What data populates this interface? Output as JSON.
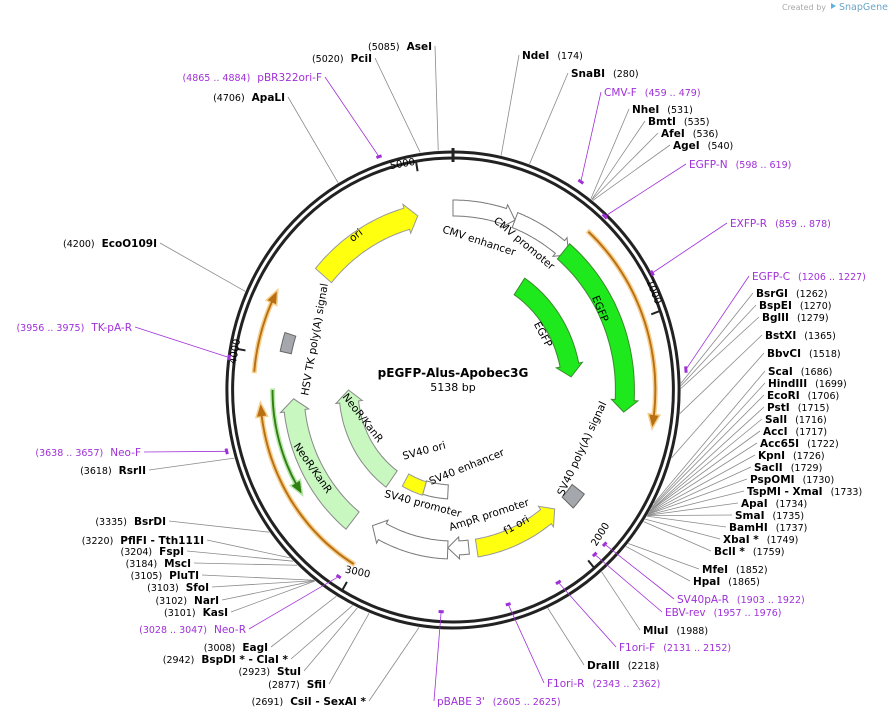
{
  "header": {
    "created_by": "Created by",
    "app": "SnapGene"
  },
  "plasmid": {
    "name": "pEGFP-Alus-Apobec3G",
    "size": "5138 bp"
  },
  "ruler_ticks": [
    1000,
    2000,
    3000,
    4000,
    5000
  ],
  "sites": [
    {
      "name": "AseI",
      "position": "(5085)"
    },
    {
      "name": "PciI",
      "position": "(5020)"
    },
    {
      "name": "ApaLI",
      "position": "(4706)"
    },
    {
      "name": "EcoO109I",
      "position": "(4200)"
    },
    {
      "name": "RsrII",
      "position": "(3618)"
    },
    {
      "name": "BsrDI",
      "position": "(3335)"
    },
    {
      "name": "PflFI - Tth111I",
      "position": "(3220)"
    },
    {
      "name": "FspI",
      "position": "(3204)"
    },
    {
      "name": "MscI",
      "position": "(3184)"
    },
    {
      "name": "PluTI",
      "position": "(3105)"
    },
    {
      "name": "SfoI",
      "position": "(3103)"
    },
    {
      "name": "NarI",
      "position": "(3102)"
    },
    {
      "name": "KasI",
      "position": "(3101)"
    },
    {
      "name": "EagI",
      "position": "(3008)"
    },
    {
      "name": "BspDI * - ClaI *",
      "position": "(2942)"
    },
    {
      "name": "StuI",
      "position": "(2923)"
    },
    {
      "name": "SfiI",
      "position": "(2877)"
    },
    {
      "name": "CsiI - SexAI *",
      "position": "(2691)"
    },
    {
      "name": "DraIII",
      "position": "(2218)"
    },
    {
      "name": "MluI",
      "position": "(1988)"
    },
    {
      "name": "HpaI",
      "position": "(1865)"
    },
    {
      "name": "MfeI",
      "position": "(1852)"
    },
    {
      "name": "BclI *",
      "position": "(1759)"
    },
    {
      "name": "XbaI *",
      "position": "(1749)"
    },
    {
      "name": "BamHI",
      "position": "(1737)"
    },
    {
      "name": "SmaI",
      "position": "(1735)"
    },
    {
      "name": "ApaI",
      "position": "(1734)"
    },
    {
      "name": "TspMI - XmaI",
      "position": "(1733)"
    },
    {
      "name": "PspOMI",
      "position": "(1730)"
    },
    {
      "name": "SacII",
      "position": "(1729)"
    },
    {
      "name": "KpnI",
      "position": "(1726)"
    },
    {
      "name": "Acc65I",
      "position": "(1722)"
    },
    {
      "name": "AccI",
      "position": "(1717)"
    },
    {
      "name": "SalI",
      "position": "(1716)"
    },
    {
      "name": "PstI",
      "position": "(1715)"
    },
    {
      "name": "EcoRI",
      "position": "(1706)"
    },
    {
      "name": "HindIII",
      "position": "(1699)"
    },
    {
      "name": "ScaI",
      "position": "(1686)"
    },
    {
      "name": "BbvCI",
      "position": "(1518)"
    },
    {
      "name": "BstXI",
      "position": "(1365)"
    },
    {
      "name": "BglII",
      "position": "(1279)"
    },
    {
      "name": "BspEI",
      "position": "(1270)"
    },
    {
      "name": "BsrGI",
      "position": "(1262)"
    },
    {
      "name": "AgeI",
      "position": "(540)"
    },
    {
      "name": "AfeI",
      "position": "(536)"
    },
    {
      "name": "BmtI",
      "position": "(535)"
    },
    {
      "name": "NheI",
      "position": "(531)"
    },
    {
      "name": "SnaBI",
      "position": "(280)"
    },
    {
      "name": "NdeI",
      "position": "(174)"
    }
  ],
  "primers": [
    {
      "name": "pBR322ori-F",
      "range": "(4865 .. 4884)"
    },
    {
      "name": "TK-pA-R",
      "range": "(3956 .. 3975)"
    },
    {
      "name": "Neo-F",
      "range": "(3638 .. 3657)"
    },
    {
      "name": "Neo-R",
      "range": "(3028 .. 3047)"
    },
    {
      "name": "pBABE 3'",
      "range": "(2605 .. 2625)"
    },
    {
      "name": "F1ori-R",
      "range": "(2343 .. 2362)"
    },
    {
      "name": "F1ori-F",
      "range": "(2131 .. 2152)"
    },
    {
      "name": "EBV-rev",
      "range": "(1957 .. 1976)"
    },
    {
      "name": "SV40pA-R",
      "range": "(1903 .. 1922)"
    },
    {
      "name": "EGFP-C",
      "range": "(1206 .. 1227)"
    },
    {
      "name": "EXFP-R",
      "range": "(859 .. 878)"
    },
    {
      "name": "EGFP-N",
      "range": "(598 .. 619)"
    },
    {
      "name": "CMV-F",
      "range": "(459 .. 479)"
    }
  ],
  "features": [
    {
      "name": "CMV enhancer"
    },
    {
      "name": "CMV promoter"
    },
    {
      "name": "EGFP"
    },
    {
      "name": "EGFP"
    },
    {
      "name": "SV40 poly(A) signal"
    },
    {
      "name": "f1 ori"
    },
    {
      "name": "AmpR promoter"
    },
    {
      "name": "SV40 promoter"
    },
    {
      "name": "SV40 enhancer"
    },
    {
      "name": "SV40 ori"
    },
    {
      "name": "NeoR/KanR"
    },
    {
      "name": "NeoR/KanR"
    },
    {
      "name": "HSV TK poly(A) signal"
    },
    {
      "name": "ori"
    }
  ]
}
